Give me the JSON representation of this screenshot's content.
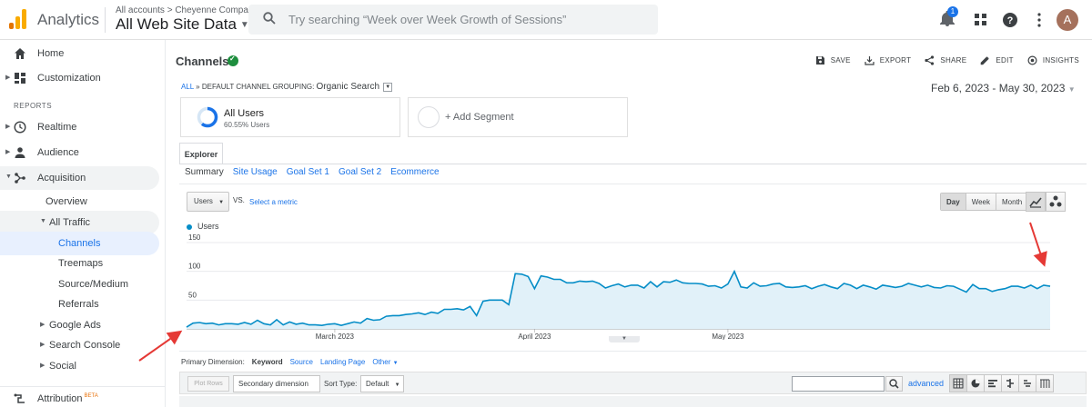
{
  "header": {
    "app_name": "Analytics",
    "account_breadcrumb": "All accounts > Cheyenne Company",
    "property_name": "All Web Site Data",
    "search_placeholder": "Try searching “Week over Week Growth of Sessions”",
    "notification_count": "1",
    "avatar_letter": "A"
  },
  "sidebar": {
    "home": "Home",
    "customization": "Customization",
    "reports_heading": "REPORTS",
    "realtime": "Realtime",
    "audience": "Audience",
    "acquisition": "Acquisition",
    "overview": "Overview",
    "all_traffic": "All Traffic",
    "channels": "Channels",
    "treemaps": "Treemaps",
    "source_medium": "Source/Medium",
    "referrals": "Referrals",
    "google_ads": "Google Ads",
    "search_console": "Search Console",
    "social": "Social",
    "attribution": "Attribution",
    "beta": "BETA"
  },
  "page": {
    "title": "Channels",
    "actions": {
      "save": "SAVE",
      "export": "EXPORT",
      "share": "SHARE",
      "edit": "EDIT",
      "insights": "INSIGHTS"
    },
    "breadcrumb_all": "ALL",
    "breadcrumb_sep": "»",
    "grouping_label": "DEFAULT CHANNEL GROUPING:",
    "grouping_value": "Organic Search",
    "date_range": "Feb 6, 2023 - May 30, 2023",
    "segment_name": "All Users",
    "segment_pct": "60.55% Users",
    "add_segment": "+ Add Segment",
    "explorer_tab": "Explorer",
    "subtabs": [
      "Summary",
      "Site Usage",
      "Goal Set 1",
      "Goal Set 2",
      "Ecommerce"
    ],
    "metric": "Users",
    "vs": "VS.",
    "select_metric": "Select a metric",
    "granularity": [
      "Day",
      "Week",
      "Month"
    ],
    "primary_dimension_label": "Primary Dimension:",
    "primary_dimension_value": "Keyword",
    "dim_source": "Source",
    "dim_landing": "Landing Page",
    "dim_other": "Other",
    "plot_rows": "Plot Rows",
    "secondary_dimension": "Secondary dimension",
    "sort_type_label": "Sort Type:",
    "sort_type_value": "Default",
    "advanced": "advanced"
  },
  "colors": {
    "accent": "#1a73e8",
    "series": "#058dc7",
    "fill": "#e1f1f9",
    "annotation": "#e53935"
  },
  "chart_data": {
    "type": "area",
    "series": [
      {
        "name": "Users",
        "values": [
          3,
          10,
          11,
          9,
          10,
          7,
          9,
          9,
          8,
          11,
          8,
          15,
          9,
          7,
          16,
          7,
          12,
          8,
          10,
          7,
          7,
          6,
          8,
          9,
          6,
          9,
          12,
          10,
          18,
          15,
          16,
          22,
          23,
          23,
          25,
          26,
          28,
          25,
          29,
          27,
          34,
          34,
          35,
          33,
          39,
          23,
          48,
          50,
          50,
          50,
          42,
          96,
          95,
          91,
          70,
          92,
          90,
          86,
          86,
          80,
          80,
          83,
          82,
          83,
          79,
          71,
          75,
          78,
          73,
          76,
          76,
          71,
          82,
          73,
          82,
          81,
          85,
          80,
          79,
          79,
          78,
          74,
          75,
          71,
          78,
          100,
          73,
          71,
          80,
          74,
          75,
          78,
          79,
          73,
          72,
          73,
          75,
          70,
          74,
          77,
          73,
          70,
          79,
          76,
          70,
          76,
          73,
          69,
          76,
          74,
          72,
          74,
          79,
          76,
          73,
          76,
          72,
          71,
          75,
          74,
          69,
          64,
          77,
          70,
          70,
          65,
          68,
          70,
          74,
          74,
          71,
          76,
          70,
          76,
          74
        ]
      }
    ],
    "x_start": "2023-02-06",
    "x_end": "2023-05-30",
    "x_tick_labels": [
      "March 2023",
      "April 2023",
      "May 2023"
    ],
    "y_tick_labels": [
      "150",
      "100",
      "50"
    ],
    "ylim": [
      0,
      150
    ],
    "legend": "top-left"
  }
}
